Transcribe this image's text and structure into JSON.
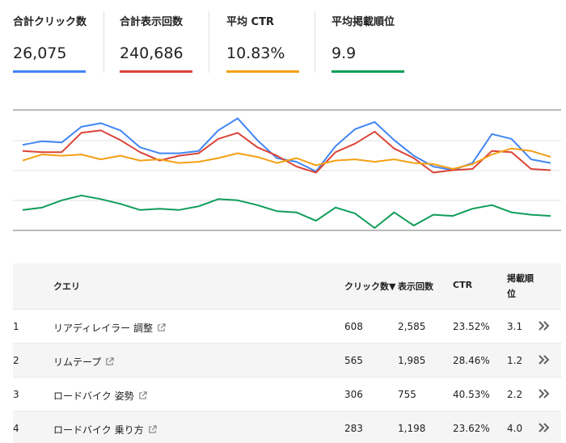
{
  "metrics": [
    {
      "label": "合計クリック数",
      "value": "26,075",
      "color": "#4285f4"
    },
    {
      "label": "合計表示回数",
      "value": "240,686",
      "color": "#db4437"
    },
    {
      "label": "平均 CTR",
      "value": "10.83%",
      "color": "#f4a015"
    },
    {
      "label": "平均掲載順位",
      "value": "9.9",
      "color": "#0f9d58"
    }
  ],
  "chart_data": {
    "type": "line",
    "title": "",
    "xlabel": "",
    "ylabel": "",
    "grid": true,
    "x": [
      1,
      2,
      3,
      4,
      5,
      6,
      7,
      8,
      9,
      10,
      11,
      12,
      13,
      14,
      15,
      16,
      17,
      18,
      19,
      20,
      21,
      22,
      23,
      24,
      25,
      26,
      27,
      28
    ],
    "ylim": [
      0,
      100
    ],
    "series": [
      {
        "name": "合計クリック数",
        "color": "#4285f4",
        "values": [
          71,
          74,
          73,
          86,
          89,
          83,
          69,
          64,
          64,
          66,
          83,
          93,
          75,
          60,
          57,
          49,
          70,
          84,
          90,
          75,
          62,
          53,
          50,
          56,
          80,
          76,
          59,
          56
        ]
      },
      {
        "name": "合計表示回数",
        "color": "#db4437",
        "values": [
          66,
          65,
          65,
          81,
          83,
          75,
          65,
          58,
          62,
          64,
          76,
          81,
          69,
          62,
          53,
          48,
          65,
          72,
          82,
          68,
          60,
          48,
          50,
          51,
          66,
          65,
          51,
          50
        ]
      },
      {
        "name": "平均 CTR",
        "color": "#f4a015",
        "values": [
          58,
          63,
          62,
          63,
          59,
          62,
          58,
          59,
          56,
          57,
          60,
          64,
          61,
          56,
          60,
          54,
          58,
          59,
          57,
          59,
          56,
          55,
          51,
          55,
          63,
          68,
          66,
          61
        ]
      },
      {
        "name": "平均掲載順位",
        "color": "#0f9d58",
        "values": [
          17,
          19,
          25,
          29,
          26,
          22,
          17,
          18,
          17,
          20,
          26,
          25,
          21,
          16,
          15,
          8,
          19,
          14,
          2,
          15,
          4,
          13,
          12,
          18,
          21,
          15,
          13,
          12
        ]
      }
    ]
  },
  "table": {
    "headers": {
      "query": "クエリ",
      "clicks": "クリック数▼",
      "impressions": "表示回数",
      "ctr": "CTR",
      "position_line1": "掲載順",
      "position_line2": "位"
    },
    "rows": [
      {
        "index": "1",
        "query": "リアディレイラー 調整",
        "clicks": "608",
        "impressions": "2,585",
        "ctr": "23.52%",
        "position": "3.1"
      },
      {
        "index": "2",
        "query": "リムテープ",
        "clicks": "565",
        "impressions": "1,985",
        "ctr": "28.46%",
        "position": "1.2"
      },
      {
        "index": "3",
        "query": "ロードバイク 姿勢",
        "clicks": "306",
        "impressions": "755",
        "ctr": "40.53%",
        "position": "2.2"
      },
      {
        "index": "4",
        "query": "ロードバイク 乗り方",
        "clicks": "283",
        "impressions": "1,198",
        "ctr": "23.62%",
        "position": "4.0"
      }
    ]
  }
}
